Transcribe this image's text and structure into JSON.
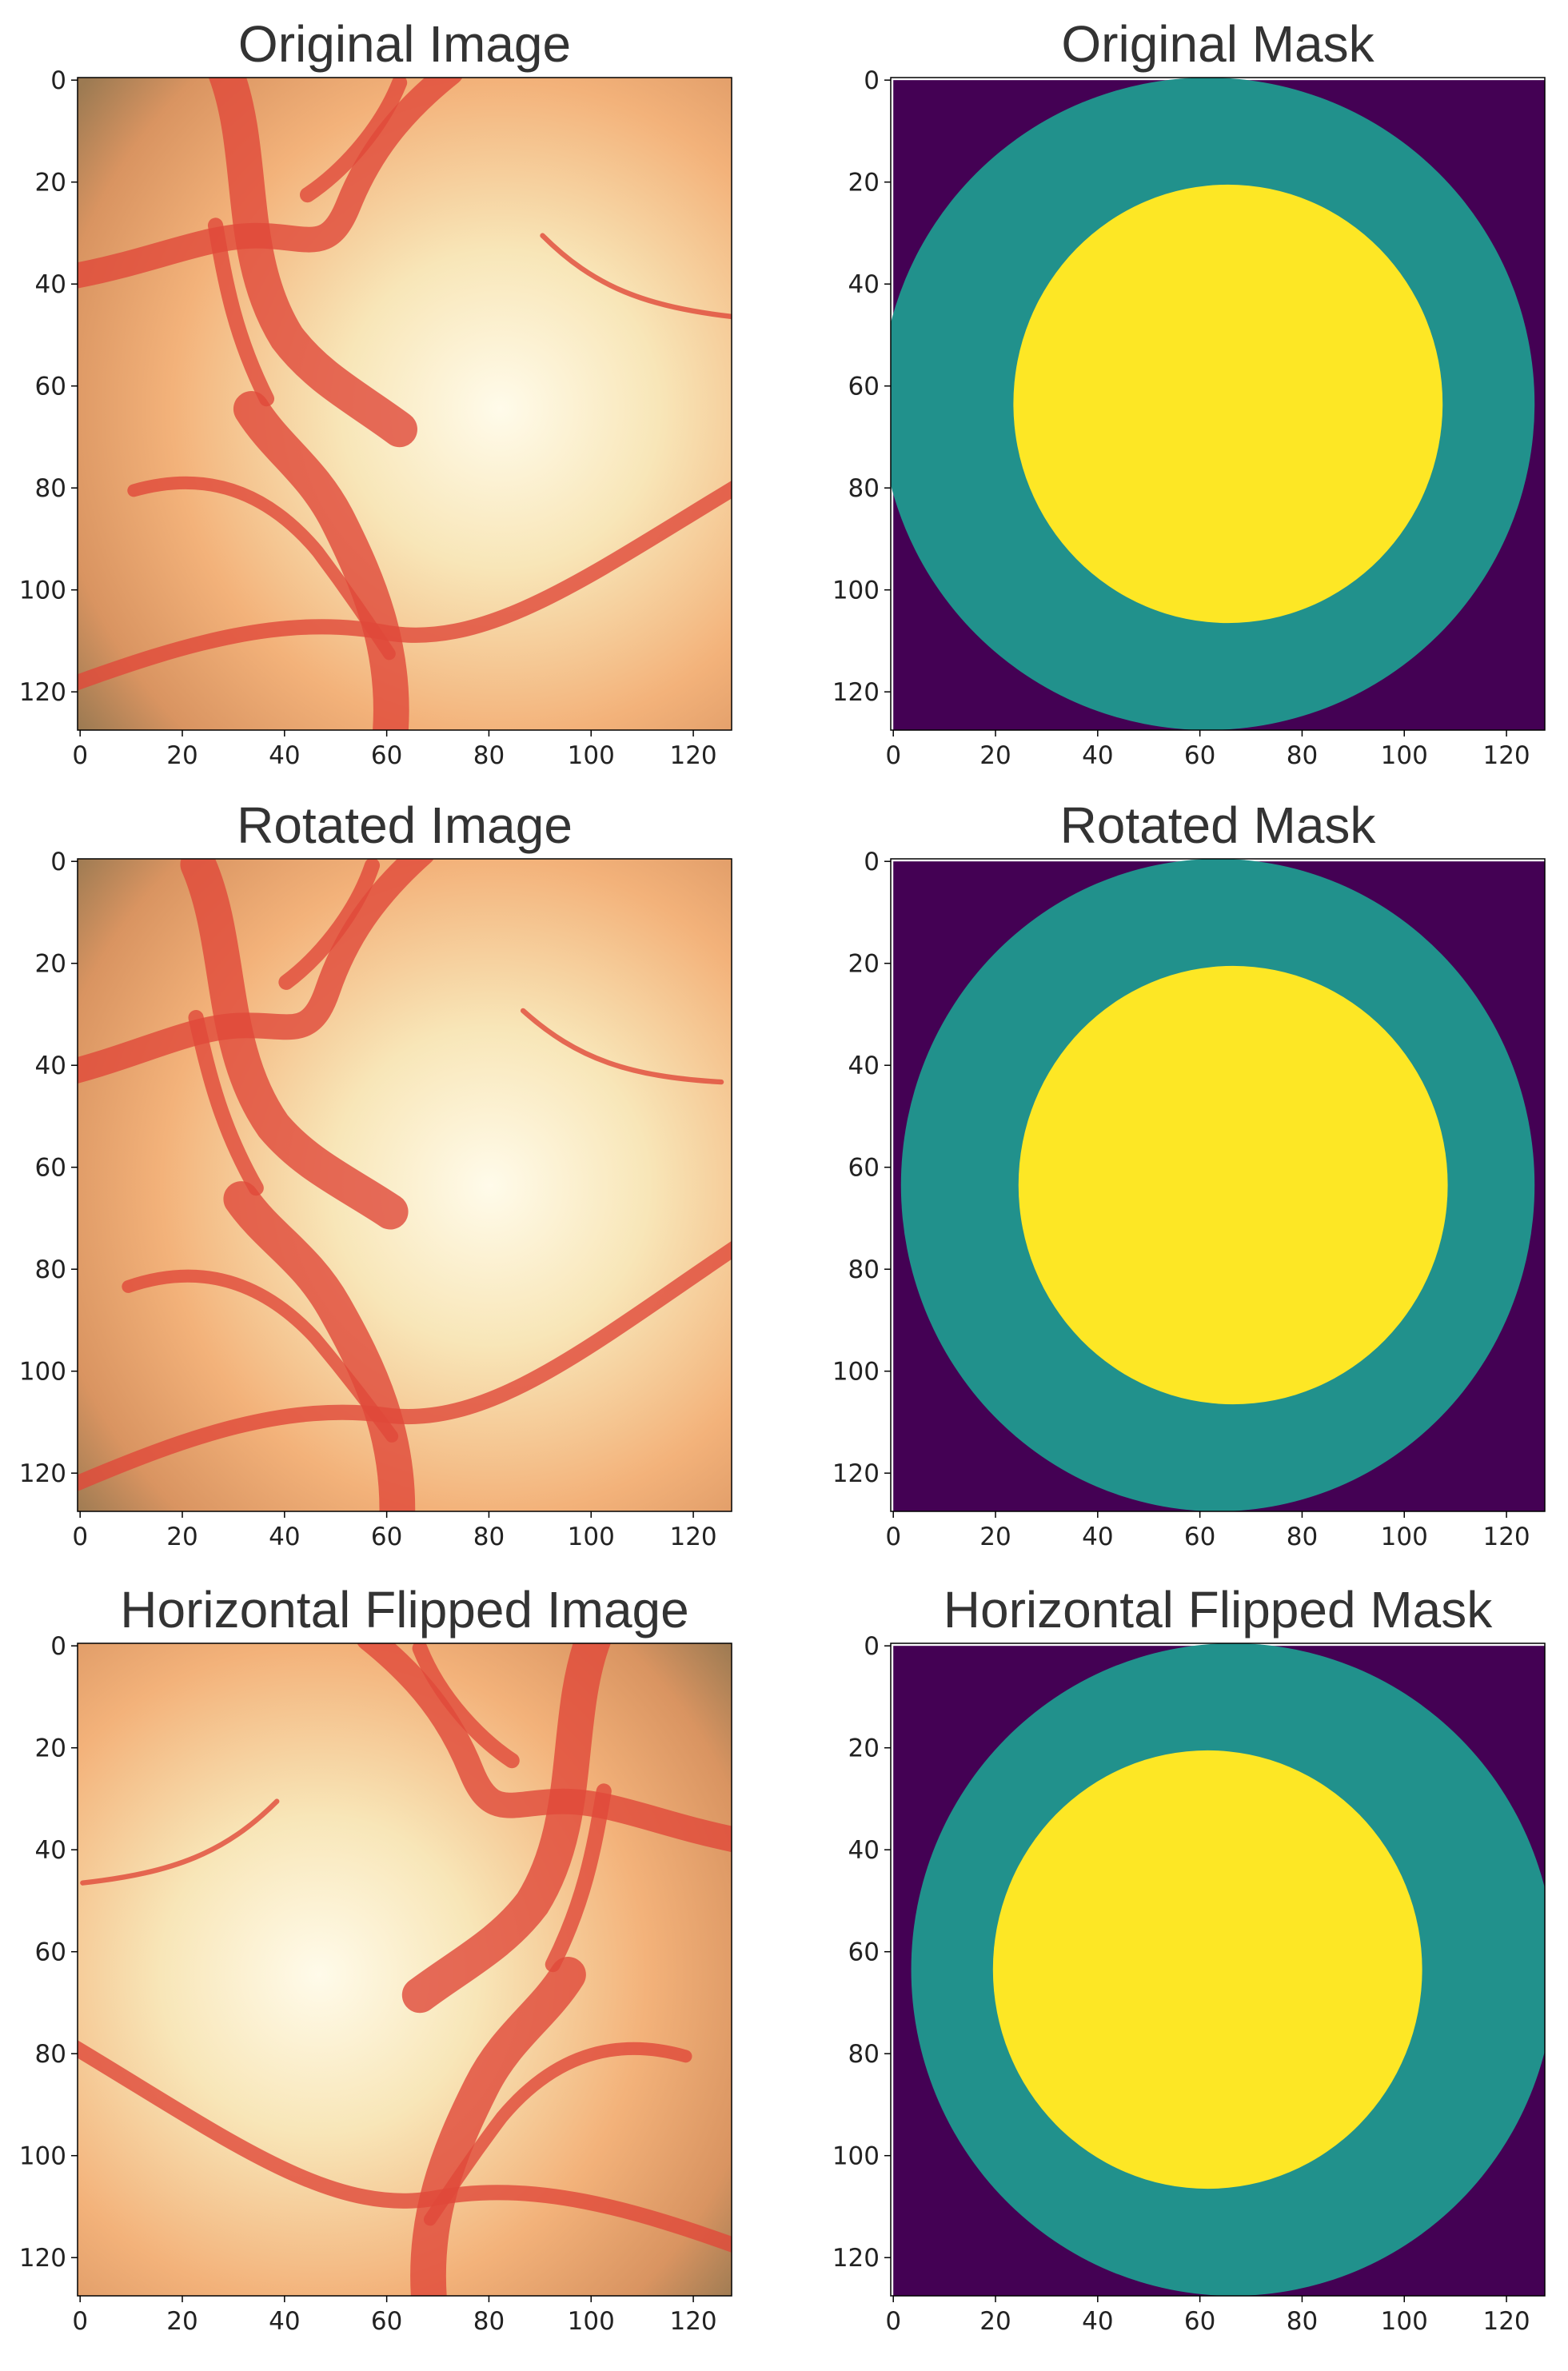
{
  "chart_data": [
    {
      "type": "image",
      "title": "Original Image",
      "xlim": [
        -0.5,
        127.5
      ],
      "ylim": [
        127.5,
        -0.5
      ],
      "xticks": [
        0,
        20,
        40,
        60,
        80,
        100,
        120
      ],
      "yticks": [
        0,
        20,
        40,
        60,
        80,
        100,
        120
      ]
    },
    {
      "type": "image",
      "title": "Original Mask",
      "xlim": [
        -0.5,
        127.5
      ],
      "ylim": [
        127.5,
        -0.5
      ],
      "xticks": [
        0,
        20,
        40,
        60,
        80,
        100,
        120
      ],
      "yticks": [
        0,
        20,
        40,
        60,
        80,
        100,
        120
      ]
    },
    {
      "type": "image",
      "title": "Rotated Image",
      "xlim": [
        -0.5,
        127.5
      ],
      "ylim": [
        127.5,
        -0.5
      ],
      "xticks": [
        0,
        20,
        40,
        60,
        80,
        100,
        120
      ],
      "yticks": [
        0,
        20,
        40,
        60,
        80,
        100,
        120
      ]
    },
    {
      "type": "image",
      "title": "Rotated Mask",
      "xlim": [
        -0.5,
        127.5
      ],
      "ylim": [
        127.5,
        -0.5
      ],
      "xticks": [
        0,
        20,
        40,
        60,
        80,
        100,
        120
      ],
      "yticks": [
        0,
        20,
        40,
        60,
        80,
        100,
        120
      ]
    },
    {
      "type": "image",
      "title": "Horizontal Flipped Image",
      "xlim": [
        -0.5,
        127.5
      ],
      "ylim": [
        127.5,
        -0.5
      ],
      "xticks": [
        0,
        20,
        40,
        60,
        80,
        100,
        120
      ],
      "yticks": [
        0,
        20,
        40,
        60,
        80,
        100,
        120
      ]
    },
    {
      "type": "image",
      "title": "Horizontal Flipped Mask",
      "xlim": [
        -0.5,
        127.5
      ],
      "ylim": [
        127.5,
        -0.5
      ],
      "xticks": [
        0,
        20,
        40,
        60,
        80,
        100,
        120
      ],
      "yticks": [
        0,
        20,
        40,
        60,
        80,
        100,
        120
      ]
    }
  ]
}
